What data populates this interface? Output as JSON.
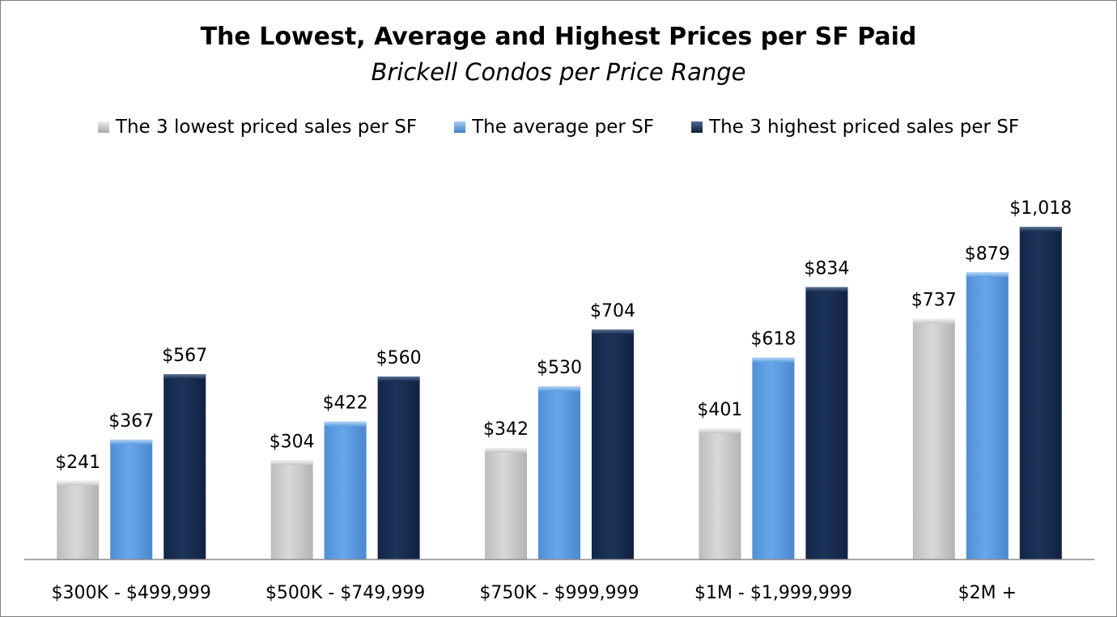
{
  "chart_data": {
    "type": "bar",
    "title": "The Lowest, Average and Highest Prices per SF Paid",
    "subtitle": "Brickell Condos per Price Range",
    "xlabel": "",
    "ylabel": "",
    "ylim": [
      0,
      1100
    ],
    "grid": false,
    "legend_position": "top",
    "categories": [
      "$300K - $499,999",
      "$500K - $749,999",
      "$750K - $999,999",
      "$1M - $1,999,999",
      "$2M +"
    ],
    "series": [
      {
        "name": "The 3 lowest priced sales per SF",
        "color": "#c9c9c9",
        "values": [
          241,
          304,
          342,
          401,
          737
        ],
        "labels": [
          "$241",
          "$304",
          "$342",
          "$401",
          "$737"
        ]
      },
      {
        "name": "The average per SF",
        "color": "#5b9bdf",
        "values": [
          367,
          422,
          530,
          618,
          879
        ],
        "labels": [
          "$367",
          "$422",
          "$530",
          "$618",
          "$879"
        ]
      },
      {
        "name": "The 3 highest priced sales per SF",
        "color": "#142a4b",
        "values": [
          567,
          560,
          704,
          834,
          1018
        ],
        "labels": [
          "$567",
          "$560",
          "$704",
          "$834",
          "$1,018"
        ]
      }
    ]
  }
}
